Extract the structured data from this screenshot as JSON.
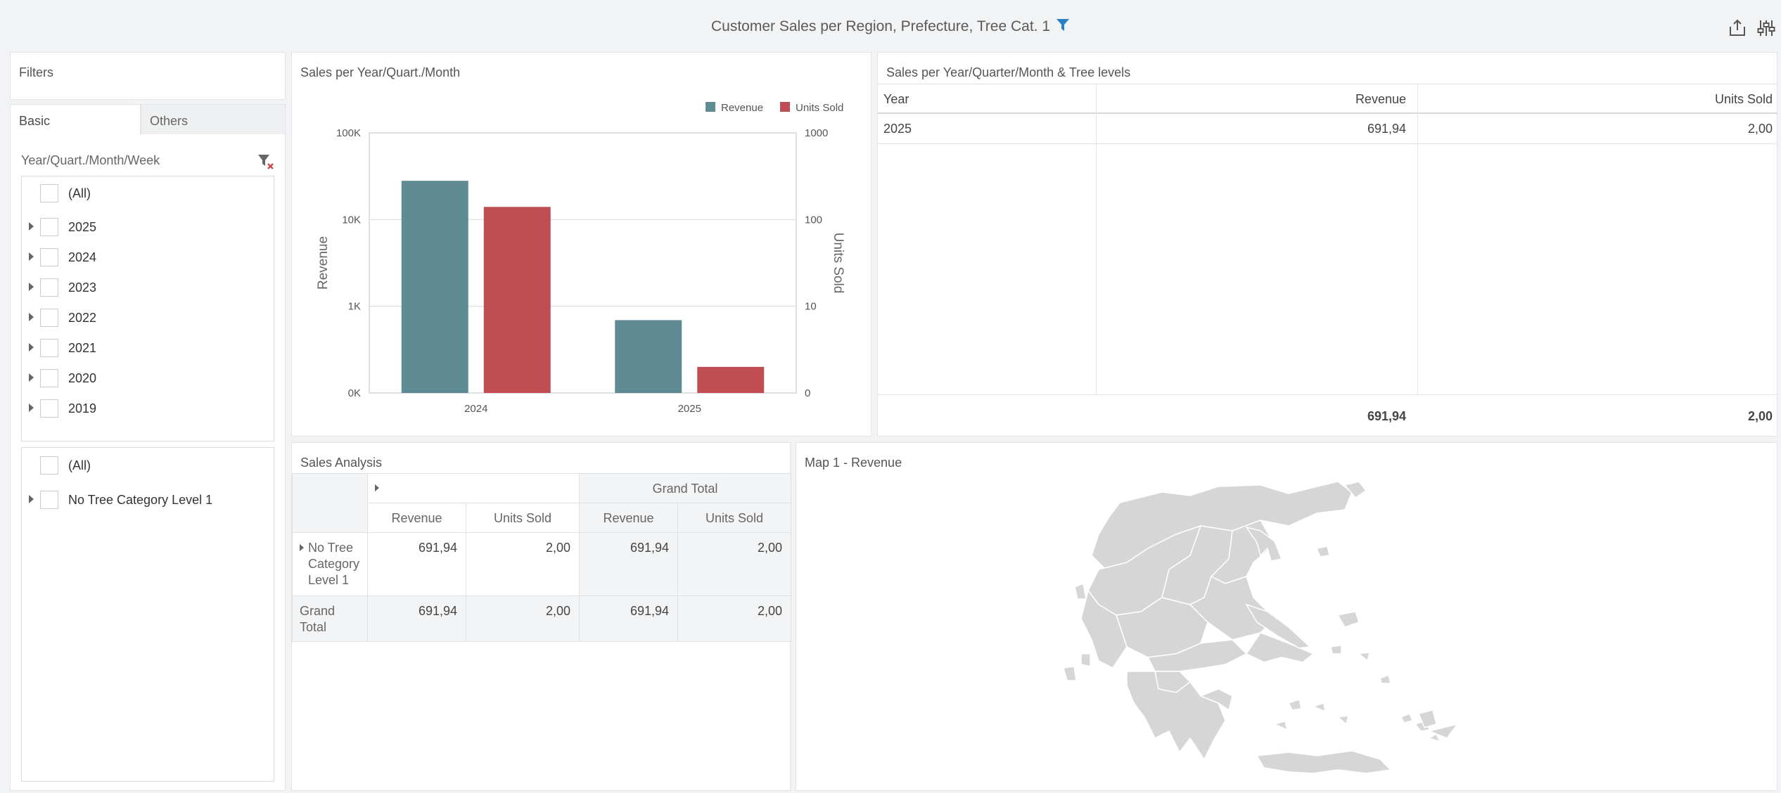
{
  "header": {
    "title": "Customer Sales per Region, Prefecture, Tree Cat. 1"
  },
  "filters_panel": {
    "title": "Filters",
    "tabs": [
      {
        "label": "Basic"
      },
      {
        "label": "Others"
      }
    ],
    "date_filter": {
      "label": "Year/Quart./Month/Week",
      "all_label": "(All)",
      "items": [
        "2025",
        "2024",
        "2023",
        "2022",
        "2021",
        "2020",
        "2019"
      ]
    },
    "tree_filter": {
      "all_label": "(All)",
      "items": [
        "No Tree Category Level 1"
      ]
    }
  },
  "chart_panel": {
    "title": "Sales per Year/Quart./Month"
  },
  "chart_data": {
    "type": "bar",
    "categories": [
      "2024",
      "2025"
    ],
    "series": [
      {
        "name": "Revenue",
        "values": [
          28000,
          692
        ],
        "color": "#5f8b95",
        "axis": "left"
      },
      {
        "name": "Units Sold",
        "values": [
          140,
          2
        ],
        "color": "#bf4d51",
        "axis": "right"
      }
    ],
    "ylabel": "Revenue",
    "y2label": "Units Sold",
    "yscale": "log",
    "left_ticks": [
      "0K",
      "1K",
      "10K",
      "100K"
    ],
    "right_ticks": [
      "0",
      "10",
      "100",
      "1000"
    ],
    "legend_position": "top-right",
    "grid": true
  },
  "year_table": {
    "title": "Sales per Year/Quarter/Month & Tree levels",
    "columns": [
      "Year",
      "Revenue",
      "Units Sold"
    ],
    "rows": [
      [
        "2025",
        "691,94",
        "2,00"
      ]
    ],
    "totals": [
      "691,94",
      "2,00"
    ]
  },
  "pivot": {
    "title": "Sales Analysis",
    "grand_total_header": "Grand Total",
    "measure_headers": [
      "Revenue",
      "Units Sold",
      "Revenue",
      "Units Sold"
    ],
    "row_label": "No Tree Category Level 1",
    "row_values": [
      "691,94",
      "2,00",
      "691,94",
      "2,00"
    ],
    "total_label": "Grand Total",
    "total_values": [
      "691,94",
      "2,00",
      "691,94",
      "2,00"
    ]
  },
  "map_panel": {
    "title": "Map 1 - Revenue"
  }
}
